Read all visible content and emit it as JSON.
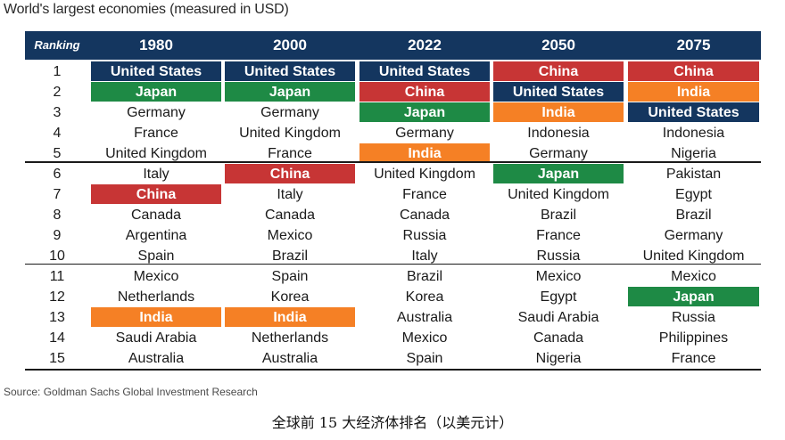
{
  "chart_data": {
    "type": "table",
    "title": "World's largest economies (measured in USD)",
    "rank_header": "Ranking",
    "years": [
      "1980",
      "2000",
      "2022",
      "2050",
      "2075"
    ],
    "rows": [
      {
        "rank": "1",
        "cells": [
          "United States",
          "United States",
          "United States",
          "China",
          "China"
        ]
      },
      {
        "rank": "2",
        "cells": [
          "Japan",
          "Japan",
          "China",
          "United States",
          "India"
        ]
      },
      {
        "rank": "3",
        "cells": [
          "Germany",
          "Germany",
          "Japan",
          "India",
          "United States"
        ]
      },
      {
        "rank": "4",
        "cells": [
          "France",
          "United Kingdom",
          "Germany",
          "Indonesia",
          "Indonesia"
        ]
      },
      {
        "rank": "5",
        "cells": [
          "United Kingdom",
          "France",
          "India",
          "Germany",
          "Nigeria"
        ]
      },
      {
        "rank": "6",
        "cells": [
          "Italy",
          "China",
          "United Kingdom",
          "Japan",
          "Pakistan"
        ]
      },
      {
        "rank": "7",
        "cells": [
          "China",
          "Italy",
          "France",
          "United Kingdom",
          "Egypt"
        ]
      },
      {
        "rank": "8",
        "cells": [
          "Canada",
          "Canada",
          "Canada",
          "Brazil",
          "Brazil"
        ]
      },
      {
        "rank": "9",
        "cells": [
          "Argentina",
          "Mexico",
          "Russia",
          "France",
          "Germany"
        ]
      },
      {
        "rank": "10",
        "cells": [
          "Spain",
          "Brazil",
          "Italy",
          "Russia",
          "United Kingdom"
        ]
      },
      {
        "rank": "11",
        "cells": [
          "Mexico",
          "Spain",
          "Brazil",
          "Mexico",
          "Mexico"
        ]
      },
      {
        "rank": "12",
        "cells": [
          "Netherlands",
          "Korea",
          "Korea",
          "Egypt",
          "Japan"
        ]
      },
      {
        "rank": "13",
        "cells": [
          "India",
          "India",
          "Australia",
          "Saudi Arabia",
          "Russia"
        ]
      },
      {
        "rank": "14",
        "cells": [
          "Saudi Arabia",
          "Netherlands",
          "Mexico",
          "Canada",
          "Philippines"
        ]
      },
      {
        "rank": "15",
        "cells": [
          "Australia",
          "Australia",
          "Spain",
          "Nigeria",
          "France"
        ]
      }
    ],
    "highlight_colors": {
      "United States": "#14365f",
      "Japan": "#1e8a45",
      "China": "#c73535",
      "India": "#f58025"
    },
    "header_color": "#14365f"
  },
  "source": "Source: Goldman Sachs Global Investment Research",
  "caption": "全球前 15 大经济体排名（以美元计）"
}
